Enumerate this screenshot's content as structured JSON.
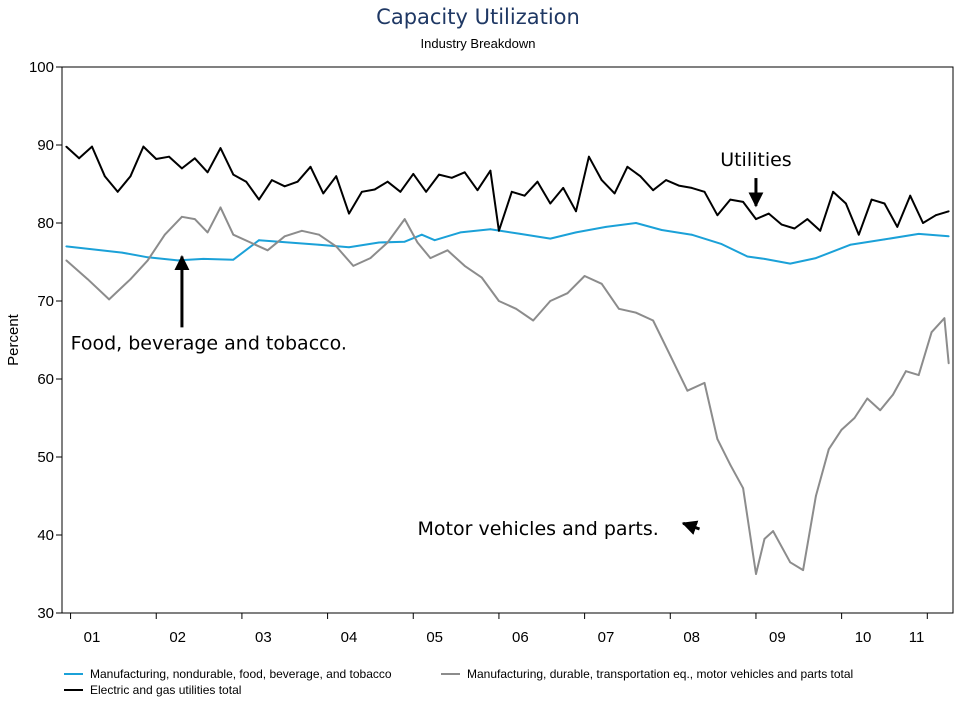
{
  "chart_data": {
    "type": "line",
    "title": "Capacity Utilization",
    "subtitle": "Industry Breakdown",
    "xlabel": "",
    "ylabel": "Percent",
    "ylim": [
      30,
      100
    ],
    "yticks": [
      30,
      40,
      50,
      60,
      70,
      80,
      90,
      100
    ],
    "xlim": [
      2000.9,
      2011.3
    ],
    "xticks": [
      {
        "label": "01",
        "x": 2001.25
      },
      {
        "label": "02",
        "x": 2002.25
      },
      {
        "label": "03",
        "x": 2003.25
      },
      {
        "label": "04",
        "x": 2004.25
      },
      {
        "label": "05",
        "x": 2005.25
      },
      {
        "label": "06",
        "x": 2006.25
      },
      {
        "label": "07",
        "x": 2007.25
      },
      {
        "label": "08",
        "x": 2008.25
      },
      {
        "label": "09",
        "x": 2009.25
      },
      {
        "label": "10",
        "x": 2010.25
      },
      {
        "label": "11",
        "x": 2010.875
      }
    ],
    "grid": false,
    "legend_position": "bottom",
    "series": [
      {
        "name": "Manufacturing, nondurable, food, beverage, and tobacco",
        "color": "#1ba1d8",
        "x": [
          2000.95,
          2001.6,
          2001.9,
          2002.25,
          2002.55,
          2002.9,
          2003.2,
          2003.55,
          2003.9,
          2004.25,
          2004.6,
          2004.9,
          2005.1,
          2005.25,
          2005.55,
          2005.9,
          2006.25,
          2006.6,
          2006.9,
          2007.25,
          2007.6,
          2007.9,
          2008.25,
          2008.6,
          2008.9,
          2009.1,
          2009.4,
          2009.7,
          2010.1,
          2010.5,
          2010.9,
          2011.25
        ],
        "y": [
          77,
          76.2,
          75.6,
          75.2,
          75.4,
          75.3,
          77.8,
          77.5,
          77.2,
          76.9,
          77.5,
          77.6,
          78.5,
          77.8,
          78.8,
          79.2,
          78.6,
          78,
          78.8,
          79.5,
          80,
          79.1,
          78.5,
          77.3,
          75.7,
          75.4,
          74.8,
          75.5,
          77.2,
          77.9,
          78.6,
          78.3
        ]
      },
      {
        "name": "Manufacturing, durable, transportation eq., motor vehicles and parts total",
        "color": "#8c8c8c",
        "x": [
          2000.95,
          2001.2,
          2001.45,
          2001.7,
          2001.9,
          2002.1,
          2002.3,
          2002.45,
          2002.6,
          2002.75,
          2002.9,
          2003.1,
          2003.3,
          2003.5,
          2003.7,
          2003.9,
          2004.1,
          2004.3,
          2004.5,
          2004.7,
          2004.9,
          2005.05,
          2005.2,
          2005.4,
          2005.6,
          2005.8,
          2006.0,
          2006.2,
          2006.4,
          2006.6,
          2006.8,
          2007.0,
          2007.2,
          2007.4,
          2007.6,
          2007.8,
          2008.0,
          2008.2,
          2008.4,
          2008.55,
          2008.7,
          2008.85,
          2009.0,
          2009.1,
          2009.2,
          2009.4,
          2009.55,
          2009.7,
          2009.85,
          2010.0,
          2010.15,
          2010.3,
          2010.45,
          2010.6,
          2010.75,
          2010.9,
          2011.05,
          2011.2,
          2011.25
        ],
        "y": [
          75.2,
          72.8,
          70.2,
          72.8,
          75.2,
          78.5,
          80.8,
          80.5,
          78.8,
          82,
          78.5,
          77.5,
          76.5,
          78.3,
          79,
          78.5,
          77,
          74.5,
          75.5,
          77.5,
          80.5,
          77.5,
          75.5,
          76.5,
          74.5,
          73,
          70,
          69,
          67.5,
          70,
          71,
          73.2,
          72.2,
          69,
          68.5,
          67.5,
          63,
          58.5,
          59.5,
          52.3,
          49,
          46,
          35,
          39.5,
          40.5,
          36.5,
          35.5,
          45,
          51,
          53.5,
          55,
          57.5,
          56,
          58,
          61,
          60.5,
          66,
          67.8,
          62
        ]
      },
      {
        "name": "Electric and gas utilities total",
        "color": "#000000",
        "x": [
          2000.95,
          2001.1,
          2001.25,
          2001.4,
          2001.55,
          2001.7,
          2001.85,
          2002.0,
          2002.15,
          2002.3,
          2002.45,
          2002.6,
          2002.75,
          2002.9,
          2003.05,
          2003.2,
          2003.35,
          2003.5,
          2003.65,
          2003.8,
          2003.95,
          2004.1,
          2004.25,
          2004.4,
          2004.55,
          2004.7,
          2004.85,
          2005.0,
          2005.15,
          2005.3,
          2005.45,
          2005.6,
          2005.75,
          2005.9,
          2006.0,
          2006.15,
          2006.3,
          2006.45,
          2006.6,
          2006.75,
          2006.9,
          2007.05,
          2007.2,
          2007.35,
          2007.5,
          2007.65,
          2007.8,
          2007.95,
          2008.1,
          2008.25,
          2008.4,
          2008.55,
          2008.7,
          2008.85,
          2009.0,
          2009.15,
          2009.3,
          2009.45,
          2009.6,
          2009.75,
          2009.9,
          2010.05,
          2010.2,
          2010.35,
          2010.5,
          2010.65,
          2010.8,
          2010.95,
          2011.1,
          2011.25
        ],
        "y": [
          89.8,
          88.3,
          89.8,
          86,
          84,
          86,
          89.8,
          88.2,
          88.5,
          87,
          88.3,
          86.5,
          89.6,
          86.2,
          85.3,
          83,
          85.5,
          84.7,
          85.3,
          87.2,
          83.8,
          86,
          81.2,
          84,
          84.3,
          85.3,
          84,
          86.3,
          84,
          86.2,
          85.8,
          86.5,
          84.2,
          86.7,
          79,
          84,
          83.5,
          85.3,
          82.5,
          84.5,
          81.5,
          88.5,
          85.5,
          83.8,
          87.2,
          86,
          84.2,
          85.5,
          84.8,
          84.5,
          84,
          81,
          83,
          82.7,
          80.5,
          81.2,
          79.8,
          79.3,
          80.5,
          79,
          84,
          82.5,
          78.5,
          83,
          82.5,
          79.5,
          83.5,
          80,
          81,
          81.5
        ]
      }
    ],
    "annotations": [
      {
        "text": "Utilities",
        "x": 2009.0,
        "y": 87.3,
        "arrow_to": [
          2009.0,
          82.2
        ]
      },
      {
        "text": "Food, beverage and tobacco.",
        "x": 2001.0,
        "y": 63.8,
        "arrow_to": [
          2002.3,
          75.7
        ]
      },
      {
        "text": "Motor vehicles and parts.",
        "x": 2005.05,
        "y": 40.0,
        "arrow_to": [
          2008.15,
          41.5
        ]
      }
    ]
  }
}
